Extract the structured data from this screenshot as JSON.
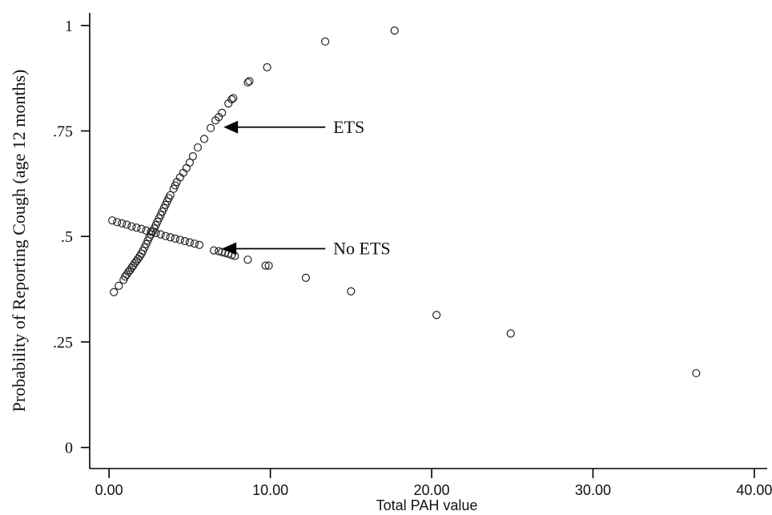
{
  "chart_data": {
    "type": "scatter",
    "xlabel": "Total PAH value",
    "ylabel": "Probability of Reporting Cough (age 12 months)",
    "xlim": [
      -1.2,
      40.8
    ],
    "ylim": [
      -0.05,
      1.03
    ],
    "x_ticks": [
      0,
      10,
      20,
      30,
      40
    ],
    "x_tick_labels": [
      "0.00",
      "10.00",
      "20.00",
      "30.00",
      "40.00"
    ],
    "y_ticks": [
      0,
      0.25,
      0.5,
      0.75,
      1
    ],
    "y_tick_labels": [
      "0",
      ".25",
      ".5",
      ".75",
      "1"
    ],
    "grid": false,
    "series": [
      {
        "name": "ETS",
        "points": [
          [
            0.3,
            0.368
          ],
          [
            0.6,
            0.383
          ],
          [
            0.9,
            0.397
          ],
          [
            1.0,
            0.405
          ],
          [
            1.1,
            0.41
          ],
          [
            1.2,
            0.416
          ],
          [
            1.3,
            0.42
          ],
          [
            1.4,
            0.426
          ],
          [
            1.5,
            0.431
          ],
          [
            1.6,
            0.437
          ],
          [
            1.7,
            0.442
          ],
          [
            1.8,
            0.447
          ],
          [
            1.9,
            0.453
          ],
          [
            2.0,
            0.459
          ],
          [
            2.1,
            0.466
          ],
          [
            2.2,
            0.474
          ],
          [
            2.3,
            0.482
          ],
          [
            2.4,
            0.49
          ],
          [
            2.5,
            0.498
          ],
          [
            2.6,
            0.505
          ],
          [
            2.7,
            0.512
          ],
          [
            2.8,
            0.519
          ],
          [
            2.9,
            0.527
          ],
          [
            3.0,
            0.535
          ],
          [
            3.1,
            0.543
          ],
          [
            3.2,
            0.551
          ],
          [
            3.3,
            0.559
          ],
          [
            3.4,
            0.567
          ],
          [
            3.5,
            0.575
          ],
          [
            3.6,
            0.583
          ],
          [
            3.7,
            0.591
          ],
          [
            3.8,
            0.598
          ],
          [
            4.0,
            0.613
          ],
          [
            4.1,
            0.621
          ],
          [
            4.2,
            0.629
          ],
          [
            4.4,
            0.64
          ],
          [
            4.6,
            0.651
          ],
          [
            4.8,
            0.662
          ],
          [
            5.0,
            0.675
          ],
          [
            5.2,
            0.69
          ],
          [
            5.5,
            0.711
          ],
          [
            5.9,
            0.731
          ],
          [
            6.3,
            0.757
          ],
          [
            6.6,
            0.775
          ],
          [
            6.8,
            0.783
          ],
          [
            7.0,
            0.793
          ],
          [
            7.4,
            0.815
          ],
          [
            7.6,
            0.825
          ],
          [
            7.7,
            0.828
          ],
          [
            8.6,
            0.865
          ],
          [
            8.7,
            0.868
          ],
          [
            9.8,
            0.901
          ],
          [
            13.4,
            0.962
          ],
          [
            17.7,
            0.988
          ]
        ]
      },
      {
        "name": "No ETS",
        "points": [
          [
            0.2,
            0.538
          ],
          [
            0.5,
            0.534
          ],
          [
            0.8,
            0.531
          ],
          [
            1.1,
            0.528
          ],
          [
            1.4,
            0.524
          ],
          [
            1.7,
            0.521
          ],
          [
            2.0,
            0.518
          ],
          [
            2.3,
            0.514
          ],
          [
            2.6,
            0.511
          ],
          [
            2.9,
            0.508
          ],
          [
            3.2,
            0.505
          ],
          [
            3.5,
            0.501
          ],
          [
            3.8,
            0.498
          ],
          [
            4.1,
            0.495
          ],
          [
            4.4,
            0.492
          ],
          [
            4.7,
            0.489
          ],
          [
            5.0,
            0.486
          ],
          [
            5.3,
            0.483
          ],
          [
            5.6,
            0.48
          ],
          [
            6.5,
            0.467
          ],
          [
            6.8,
            0.465
          ],
          [
            7.0,
            0.463
          ],
          [
            7.2,
            0.461
          ],
          [
            7.4,
            0.459
          ],
          [
            7.6,
            0.456
          ],
          [
            7.8,
            0.454
          ],
          [
            8.6,
            0.445
          ],
          [
            9.7,
            0.431
          ],
          [
            9.9,
            0.431
          ],
          [
            12.2,
            0.402
          ],
          [
            15.0,
            0.37
          ],
          [
            20.3,
            0.314
          ],
          [
            24.9,
            0.27
          ],
          [
            36.4,
            0.176
          ]
        ]
      }
    ],
    "annotations": [
      {
        "text": "ETS",
        "arrow_target": [
          7.1,
          0.759
        ],
        "text_anchor": [
          13.9,
          0.759
        ]
      },
      {
        "text": "No ETS",
        "arrow_target": [
          7.0,
          0.471
        ],
        "text_anchor": [
          13.9,
          0.471
        ]
      }
    ]
  }
}
